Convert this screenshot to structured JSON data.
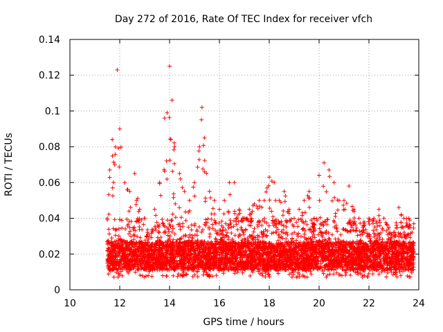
{
  "chart_data": {
    "type": "scatter",
    "title": "Day 272 of 2016, Rate Of TEC Index for receiver vfch",
    "xlabel": "GPS time / hours",
    "ylabel": "ROTI / TECUs",
    "xlim": [
      10,
      24
    ],
    "ylim": [
      0,
      0.14
    ],
    "xticks": [
      10,
      12,
      14,
      16,
      18,
      20,
      22,
      24
    ],
    "yticks": [
      0,
      0.02,
      0.04,
      0.06,
      0.08,
      0.1,
      0.12,
      0.14
    ],
    "xtick_labels": [
      "10",
      "12",
      "14",
      "16",
      "18",
      "20",
      "22",
      "24"
    ],
    "ytick_labels": [
      "0",
      "0.02",
      "0.04",
      "0.06",
      "0.08",
      "0.1",
      "0.12",
      "0.14"
    ],
    "grid": true,
    "marker": "+",
    "color": "#ff0000",
    "data_range": {
      "x_start": 11.5,
      "x_end": 23.8
    },
    "series": [
      {
        "name": "ROTI",
        "envelope": {
          "x": [
            11.5,
            11.6,
            11.7,
            11.8,
            11.9,
            12.0,
            12.2,
            12.4,
            12.6,
            12.8,
            13.0,
            13.2,
            13.4,
            13.6,
            13.8,
            13.9,
            14.0,
            14.1,
            14.2,
            14.4,
            14.6,
            14.8,
            15.0,
            15.2,
            15.3,
            15.4,
            15.6,
            15.8,
            16.0,
            16.2,
            16.4,
            16.6,
            16.8,
            17.0,
            17.2,
            17.4,
            17.6,
            17.8,
            18.0,
            18.2,
            18.4,
            18.6,
            18.8,
            19.0,
            19.2,
            19.4,
            19.6,
            19.8,
            20.0,
            20.2,
            20.4,
            20.6,
            20.8,
            21.0,
            21.2,
            21.4,
            21.6,
            21.8,
            22.0,
            22.2,
            22.4,
            22.6,
            22.8,
            23.0,
            23.2,
            23.4,
            23.6,
            23.8
          ],
          "max": [
            0.04,
            0.067,
            0.084,
            0.07,
            0.123,
            0.09,
            0.06,
            0.055,
            0.065,
            0.045,
            0.04,
            0.03,
            0.045,
            0.06,
            0.096,
            0.099,
            0.125,
            0.106,
            0.08,
            0.065,
            0.055,
            0.05,
            0.06,
            0.08,
            0.102,
            0.085,
            0.055,
            0.05,
            0.045,
            0.05,
            0.06,
            0.06,
            0.045,
            0.04,
            0.045,
            0.048,
            0.05,
            0.05,
            0.063,
            0.06,
            0.05,
            0.055,
            0.045,
            0.04,
            0.045,
            0.05,
            0.055,
            0.04,
            0.064,
            0.071,
            0.067,
            0.06,
            0.05,
            0.05,
            0.058,
            0.045,
            0.04,
            0.038,
            0.04,
            0.04,
            0.045,
            0.04,
            0.035,
            0.032,
            0.046,
            0.04,
            0.04,
            0.037
          ],
          "typical_min": 0.007,
          "typical_median": 0.018
        }
      }
    ]
  }
}
